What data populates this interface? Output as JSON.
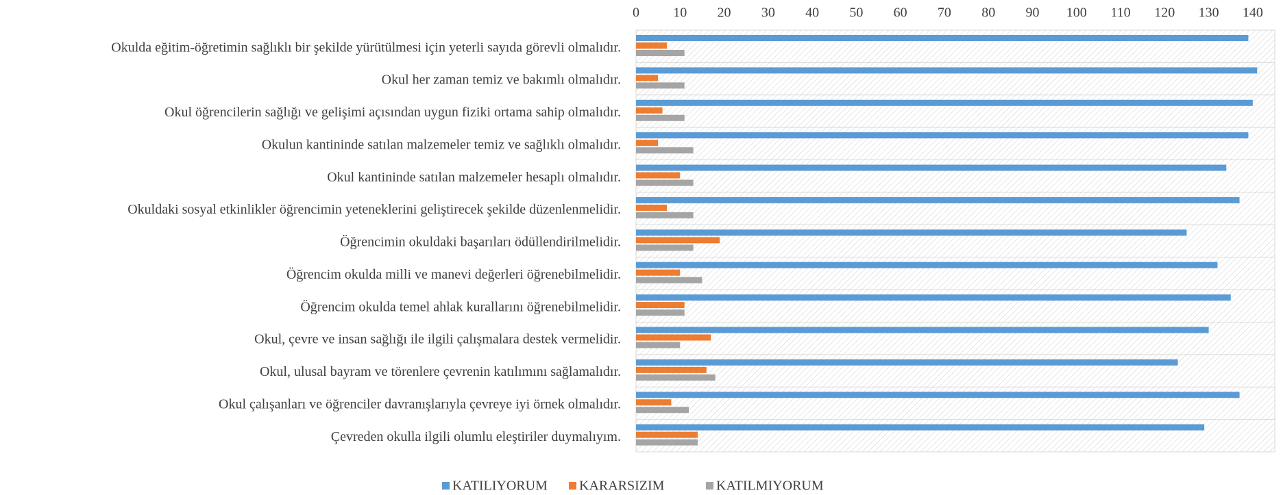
{
  "chart_data": {
    "type": "bar",
    "orientation": "horizontal",
    "categories": [
      "Okulda eğitim-öğretimin sağlıklı bir şekilde yürütülmesi için yeterli sayıda görevli olmalıdır.",
      "Okul her zaman temiz ve bakımlı olmalıdır.",
      "Okul öğrencilerin sağlığı ve gelişimi açısından uygun fiziki ortama sahip olmalıdır.",
      "Okulun kantininde satılan malzemeler temiz ve sağlıklı olmalıdır.",
      "Okul kantininde satılan malzemeler hesaplı olmalıdır.",
      "Okuldaki sosyal etkinlikler öğrencimin yeteneklerini geliştirecek şekilde düzenlenmelidir.",
      "Öğrencimin okuldaki başarıları ödüllendirilmelidir.",
      "Öğrencim okulda milli ve manevi değerleri öğrenebilmelidir.",
      "Öğrencim okulda temel ahlak kurallarını öğrenebilmelidir.",
      "Okul, çevre ve insan sağlığı ile ilgili çalışmalara destek vermelidir.",
      "Okul, ulusal bayram ve törenlere çevrenin katılımını sağlamalıdır.",
      "Okul çalışanları ve öğrenciler davranışlarıyla çevreye iyi örnek olmalıdır.",
      "Çevreden okulla ilgili olumlu eleştiriler duymalıyım."
    ],
    "series": [
      {
        "name": "KATILIYORUM",
        "color": "#5b9bd5",
        "values": [
          139,
          141,
          140,
          139,
          134,
          137,
          125,
          132,
          135,
          130,
          123,
          137,
          129
        ]
      },
      {
        "name": "KARARSIZIM",
        "color": "#ed7d31",
        "values": [
          7,
          5,
          6,
          5,
          10,
          7,
          19,
          10,
          11,
          17,
          16,
          8,
          14
        ]
      },
      {
        "name": "KATILMIYORUM",
        "color": "#a5a5a5",
        "values": [
          11,
          11,
          11,
          13,
          13,
          13,
          13,
          15,
          11,
          10,
          18,
          12,
          14
        ]
      }
    ],
    "xlim": [
      0,
      145
    ],
    "xticks": [
      0,
      10,
      20,
      30,
      40,
      50,
      60,
      70,
      80,
      90,
      100,
      110,
      120,
      130,
      140
    ],
    "grid": true,
    "legend": "bottom"
  }
}
